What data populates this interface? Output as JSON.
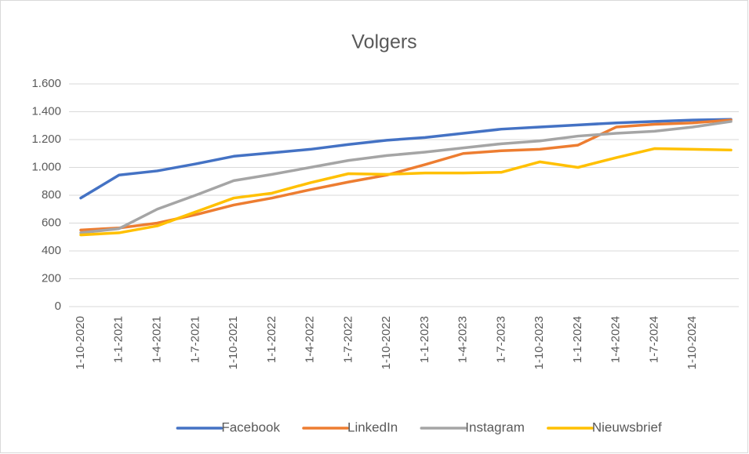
{
  "chart_data": {
    "type": "line",
    "title": "Volgers",
    "categories": [
      "1-10-2020",
      "1-1-2021",
      "1-4-2021",
      "1-7-2021",
      "1-10-2021",
      "1-1-2022",
      "1-4-2022",
      "1-7-2022",
      "1-10-2022",
      "1-1-2023",
      "1-4-2023",
      "1-7-2023",
      "1-10-2023",
      "1-1-2024",
      "1-4-2024",
      "1-7-2024",
      "1-10-2024",
      null
    ],
    "series": [
      {
        "name": "Facebook",
        "color": "#4472c4",
        "values": [
          780,
          945,
          975,
          1025,
          1080,
          1105,
          1130,
          1165,
          1195,
          1215,
          1245,
          1275,
          1290,
          1305,
          1320,
          1330,
          1340,
          1345
        ]
      },
      {
        "name": "LinkedIn",
        "color": "#ed7d31",
        "values": [
          550,
          565,
          600,
          660,
          730,
          780,
          840,
          895,
          945,
          1020,
          1100,
          1120,
          1130,
          1160,
          1290,
          1310,
          1320,
          1340
        ]
      },
      {
        "name": "Instagram",
        "color": "#a5a5a5",
        "values": [
          530,
          560,
          700,
          800,
          905,
          950,
          1000,
          1050,
          1085,
          1110,
          1140,
          1170,
          1190,
          1225,
          1245,
          1260,
          1290,
          1330
        ]
      },
      {
        "name": "Nieuwsbrief",
        "color": "#ffc000",
        "values": [
          515,
          530,
          580,
          680,
          780,
          815,
          890,
          955,
          950,
          960,
          960,
          965,
          1040,
          1000,
          1070,
          1135,
          1130,
          1125
        ]
      }
    ],
    "ylim": [
      0,
      1600
    ],
    "yticks": [
      0,
      200,
      400,
      600,
      800,
      {
        "value": 1000,
        "label": "1.000"
      },
      {
        "value": 1200,
        "label": "1.200"
      },
      {
        "value": 1400,
        "label": "1.400"
      },
      {
        "value": 1600,
        "label": "1.600"
      }
    ],
    "grid": true,
    "legend": "bottom"
  }
}
